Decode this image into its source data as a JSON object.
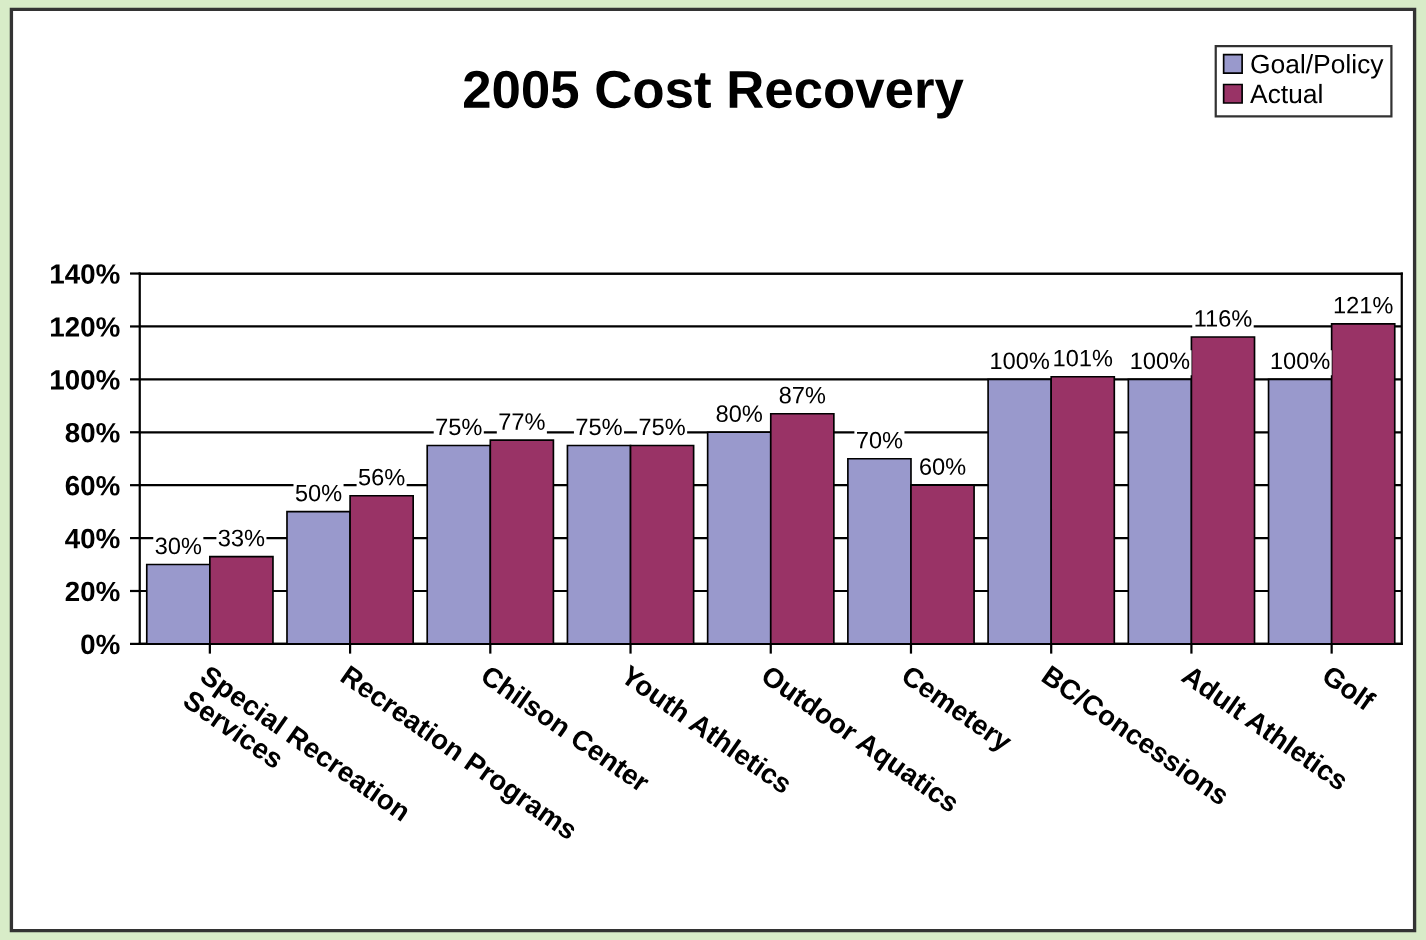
{
  "chart_data": {
    "type": "bar",
    "title": "2005 Cost Recovery",
    "categories": [
      "Special Recreation\nServices",
      "Recreation Programs",
      "Chilson Center",
      "Youth Athletics",
      "Outdoor Aquatics",
      "Cemetery",
      "BC/Concessions",
      "Adult Athletics",
      "Golf"
    ],
    "series": [
      {
        "name": "Goal/Policy",
        "color": "#9999cc",
        "values": [
          30,
          50,
          75,
          75,
          80,
          70,
          100,
          100,
          100
        ],
        "value_labels": [
          "30%",
          "50%",
          "75%",
          "75%",
          "80%",
          "70%",
          "100%",
          "100%",
          "100%"
        ]
      },
      {
        "name": "Actual",
        "color": "#993366",
        "values": [
          33,
          56,
          77,
          75,
          87,
          60,
          101,
          116,
          121
        ],
        "value_labels": [
          "33%",
          "56%",
          "77%",
          "75%",
          "87%",
          "60%",
          "101%",
          "116%",
          "121%"
        ]
      }
    ],
    "ylim": [
      0,
      140
    ],
    "yticks": [
      {
        "value": 0,
        "label": "0%"
      },
      {
        "value": 20,
        "label": "20%"
      },
      {
        "value": 40,
        "label": "40%"
      },
      {
        "value": 60,
        "label": "60%"
      },
      {
        "value": 80,
        "label": "80%"
      },
      {
        "value": 100,
        "label": "100%"
      },
      {
        "value": 120,
        "label": "120%"
      },
      {
        "value": 140,
        "label": "140%"
      }
    ],
    "grid": "y",
    "legend": "top right"
  }
}
